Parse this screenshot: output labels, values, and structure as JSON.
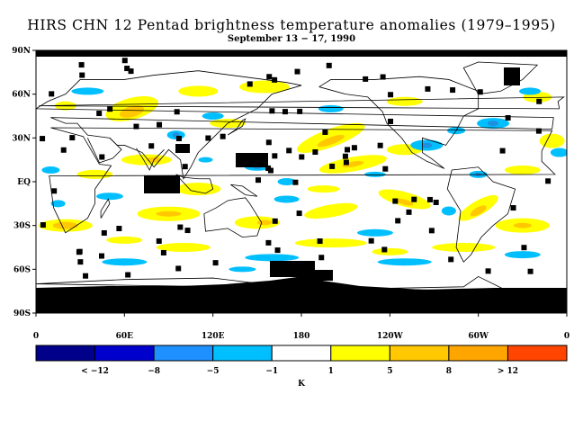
{
  "title": "HIRS CHN 12 Pentad brightness temperature anomalies (1979–1995)",
  "subtitle": "September 13 − 17, 1990",
  "map": {
    "lat_labels": [
      "90N",
      "60N",
      "30N",
      "EQ",
      "30S",
      "60S",
      "90S"
    ],
    "lon_labels": [
      "0",
      "60E",
      "120E",
      "180",
      "120W",
      "60W",
      "0"
    ],
    "palette": {
      "land": "#ffffff",
      "missing": "#000000",
      "coast": "#000000",
      "cool_strong": "#1e90e0",
      "cool": "#00bfff",
      "neutral": "#ffffff",
      "warm": "#ffff00",
      "warm_strong": "#ffc800",
      "hot": "#ffa500",
      "very_hot": "#ff7f00"
    }
  },
  "colorbar": {
    "colors": [
      "#00008b",
      "#0000cd",
      "#1e90ff",
      "#00bfff",
      "#ffffff",
      "#ffff00",
      "#ffc800",
      "#ffa500",
      "#ff4500"
    ],
    "labels": [
      "< −12",
      "−8",
      "−5",
      "−1",
      "1",
      "5",
      "8",
      "> 12"
    ],
    "unit": "K"
  }
}
